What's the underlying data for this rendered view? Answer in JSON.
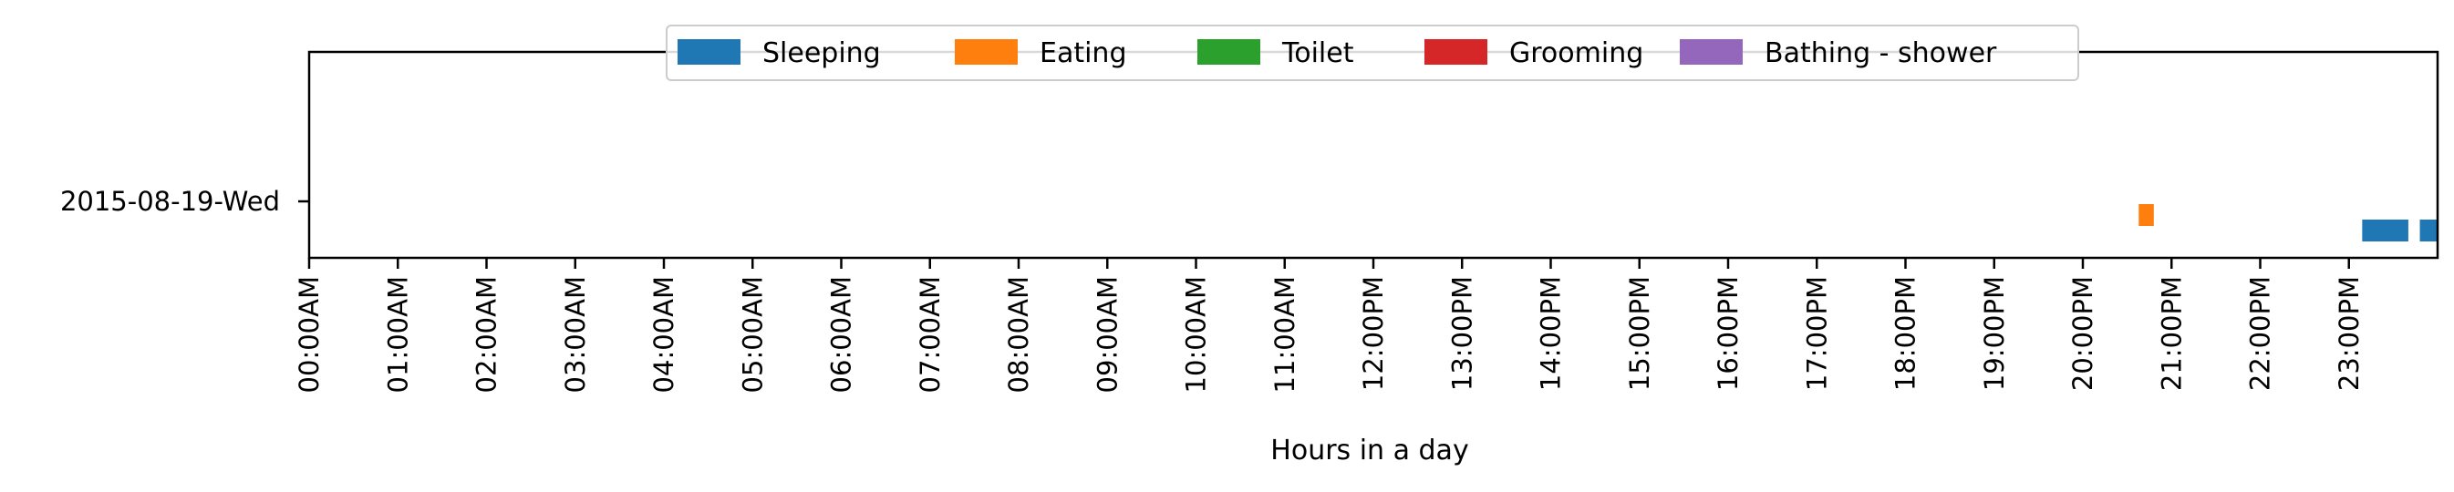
{
  "chart_data": {
    "type": "bar",
    "orientation": "horizontal-timeline",
    "title": "",
    "xlabel": "Hours in a day",
    "ylabel": "",
    "xlim": [
      0,
      24
    ],
    "x_ticks": [
      {
        "value": 0,
        "label": "00:00AM"
      },
      {
        "value": 1,
        "label": "01:00AM"
      },
      {
        "value": 2,
        "label": "02:00AM"
      },
      {
        "value": 3,
        "label": "03:00AM"
      },
      {
        "value": 4,
        "label": "04:00AM"
      },
      {
        "value": 5,
        "label": "05:00AM"
      },
      {
        "value": 6,
        "label": "06:00AM"
      },
      {
        "value": 7,
        "label": "07:00AM"
      },
      {
        "value": 8,
        "label": "08:00AM"
      },
      {
        "value": 9,
        "label": "09:00AM"
      },
      {
        "value": 10,
        "label": "10:00AM"
      },
      {
        "value": 11,
        "label": "11:00AM"
      },
      {
        "value": 12,
        "label": "12:00PM"
      },
      {
        "value": 13,
        "label": "13:00PM"
      },
      {
        "value": 14,
        "label": "14:00PM"
      },
      {
        "value": 15,
        "label": "15:00PM"
      },
      {
        "value": 16,
        "label": "16:00PM"
      },
      {
        "value": 17,
        "label": "17:00PM"
      },
      {
        "value": 18,
        "label": "18:00PM"
      },
      {
        "value": 19,
        "label": "19:00PM"
      },
      {
        "value": 20,
        "label": "20:00PM"
      },
      {
        "value": 21,
        "label": "21:00PM"
      },
      {
        "value": 22,
        "label": "22:00PM"
      },
      {
        "value": 23,
        "label": "23:00PM"
      }
    ],
    "categories": [
      "2015-08-19-Wed"
    ],
    "legend_position": "top-center",
    "grid": false,
    "series": [
      {
        "name": "Sleeping",
        "color": "#1f77b4",
        "segments": [
          {
            "day": "2015-08-19-Wed",
            "start": 23.15,
            "end": 23.67
          },
          {
            "day": "2015-08-19-Wed",
            "start": 23.8,
            "end": 24.0
          }
        ]
      },
      {
        "name": "Eating",
        "color": "#ff7f0e",
        "segments": [
          {
            "day": "2015-08-19-Wed",
            "start": 20.63,
            "end": 20.8
          }
        ]
      },
      {
        "name": "Toilet",
        "color": "#2ca02c",
        "segments": []
      },
      {
        "name": "Grooming",
        "color": "#d62728",
        "segments": []
      },
      {
        "name": "Bathing - shower",
        "color": "#9467bd",
        "segments": []
      }
    ]
  }
}
